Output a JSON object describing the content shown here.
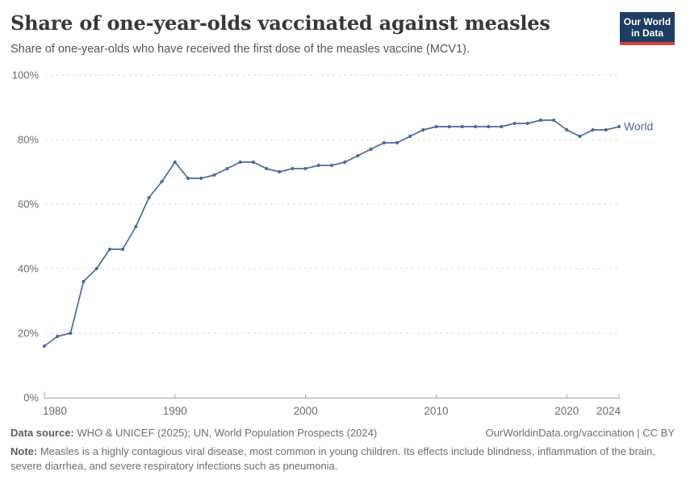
{
  "header": {
    "title": "Share of one-year-olds vaccinated against measles",
    "subtitle": "Share of one-year-olds who have received the first dose of the measles vaccine (MCV1).",
    "logo": {
      "line1": "Our World",
      "line2": "in Data",
      "bg_color": "#1d3d63",
      "accent_color": "#d8403a"
    }
  },
  "chart_data": {
    "type": "line",
    "title": "Share of one-year-olds vaccinated against measles",
    "xlabel": "",
    "ylabel": "",
    "xlim": [
      1980,
      2024
    ],
    "ylim": [
      0,
      100
    ],
    "grid": "horizontal-dashed",
    "legend_position": "end-of-line",
    "yticks": [
      0,
      20,
      40,
      60,
      80,
      100
    ],
    "ytick_suffix": "%",
    "xticks": [
      1980,
      1990,
      2000,
      2010,
      2020,
      2024
    ],
    "x": [
      1980,
      1981,
      1982,
      1983,
      1984,
      1985,
      1986,
      1987,
      1988,
      1989,
      1990,
      1991,
      1992,
      1993,
      1994,
      1995,
      1996,
      1997,
      1998,
      1999,
      2000,
      2001,
      2002,
      2003,
      2004,
      2005,
      2006,
      2007,
      2008,
      2009,
      2010,
      2011,
      2012,
      2013,
      2014,
      2015,
      2016,
      2017,
      2018,
      2019,
      2020,
      2021,
      2022,
      2023,
      2024
    ],
    "series": [
      {
        "name": "World",
        "color": "#4c6a9c",
        "values": [
          16,
          19,
          20,
          36,
          40,
          46,
          46,
          53,
          62,
          67,
          73,
          68,
          68,
          69,
          71,
          73,
          73,
          71,
          70,
          71,
          71,
          72,
          72,
          73,
          75,
          77,
          79,
          79,
          81,
          83,
          84,
          84,
          84,
          84,
          84,
          84,
          85,
          85,
          86,
          86,
          83,
          81,
          83,
          83,
          84
        ]
      }
    ]
  },
  "style": {
    "grid_color": "#dadada",
    "axis_color": "#a3a3a3",
    "tick_label_color": "#6b6b6b"
  },
  "footer": {
    "datasource_label": "Data source:",
    "datasource_text": " WHO & UNICEF (2025); UN, World Population Prospects (2024)",
    "link_text": "OurWorldinData.org/vaccination | CC BY",
    "note_label": "Note:",
    "note_text": " Measles is a highly contagious viral disease, most common in young children. Its effects include blindness, inflammation of the brain, severe diarrhea, and severe respiratory infections such as pneumonia."
  }
}
